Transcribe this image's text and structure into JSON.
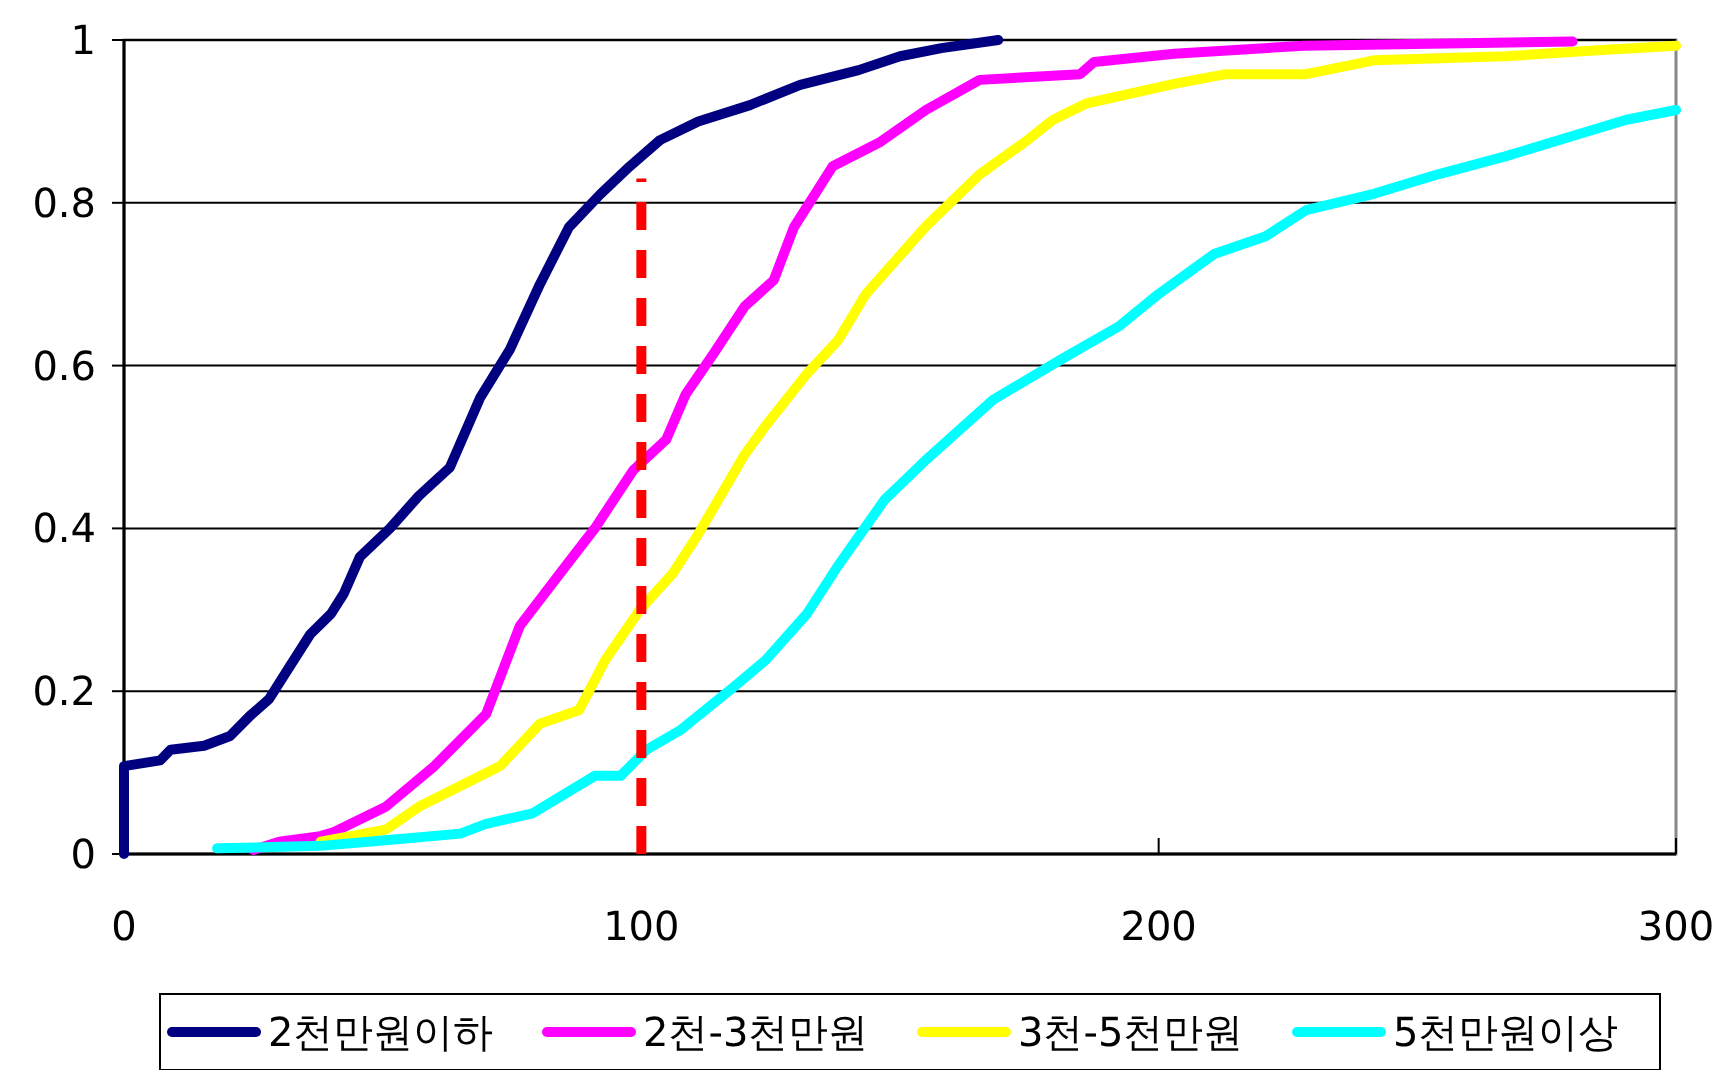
{
  "chart_data": {
    "type": "line",
    "xlim": [
      0,
      300
    ],
    "xticks": [
      0,
      100,
      200,
      300
    ],
    "ylim": [
      0,
      1
    ],
    "yticks": [
      0,
      0.2,
      0.4,
      0.6,
      0.8,
      1
    ],
    "grid": "y",
    "legend": "bottom",
    "line_style": "solid",
    "series": [
      {
        "name": "2천만원이하",
        "color": "#000080",
        "x": [
          0,
          0,
          7,
          9,
          15.5,
          20.5,
          24.4,
          28,
          32,
          36,
          40,
          42.5,
          45.6,
          51.4,
          57,
          63,
          68.8,
          74.6,
          80.4,
          86,
          92,
          97.8,
          103.6,
          111,
          121,
          130.7,
          142,
          150,
          158,
          169
        ],
        "values": [
          0,
          0.108,
          0.115,
          0.128,
          0.133,
          0.145,
          0.17,
          0.19,
          0.23,
          0.27,
          0.295,
          0.32,
          0.365,
          0.4,
          0.44,
          0.475,
          0.56,
          0.62,
          0.7,
          0.77,
          0.81,
          0.845,
          0.877,
          0.9,
          0.92,
          0.945,
          0.963,
          0.98,
          0.99,
          1
        ]
      },
      {
        "name": "2천-3천만원",
        "color": "#ff00ff",
        "x": [
          25,
          30,
          38,
          40.6,
          50.6,
          60,
          70,
          76.5,
          85.4,
          91,
          98.5,
          104.8,
          108.6,
          114,
          120,
          125.6,
          129.5,
          137,
          146,
          155,
          165.4,
          184.8,
          187.5,
          203,
          228,
          280
        ],
        "values": [
          0.005,
          0.015,
          0.022,
          0.027,
          0.058,
          0.108,
          0.172,
          0.28,
          0.354,
          0.4,
          0.472,
          0.509,
          0.565,
          0.615,
          0.673,
          0.705,
          0.77,
          0.845,
          0.874,
          0.914,
          0.951,
          0.958,
          0.973,
          0.983,
          0.993,
          0.998
        ]
      },
      {
        "name": "3천-5천만원",
        "color": "#ffff00",
        "x": [
          38,
          50.6,
          57,
          72.7,
          80.4,
          88,
          93,
          99.7,
          106,
          111,
          120,
          124,
          132,
          138,
          143.4,
          155,
          165.4,
          174,
          179.6,
          186,
          203,
          213,
          228.5,
          241.6,
          267,
          286.5,
          300
        ],
        "values": [
          0.015,
          0.03,
          0.058,
          0.108,
          0.16,
          0.177,
          0.238,
          0.3,
          0.344,
          0.393,
          0.491,
          0.526,
          0.59,
          0.631,
          0.688,
          0.771,
          0.835,
          0.874,
          0.902,
          0.922,
          0.946,
          0.958,
          0.958,
          0.975,
          0.98,
          0.988,
          0.993
        ]
      },
      {
        "name": "5천만원이상",
        "color": "#00ffff",
        "x": [
          18,
          38,
          50.6,
          65,
          70,
          79,
          91,
          96,
          101,
          107.5,
          118,
          124,
          132,
          138,
          147,
          155,
          168,
          181,
          192.5,
          200,
          210.7,
          220.7,
          228.5,
          241.6,
          254,
          267,
          280,
          290.4,
          300
        ],
        "values": [
          0.007,
          0.01,
          0.017,
          0.025,
          0.037,
          0.05,
          0.096,
          0.096,
          0.128,
          0.152,
          0.206,
          0.238,
          0.295,
          0.354,
          0.435,
          0.484,
          0.558,
          0.607,
          0.649,
          0.688,
          0.737,
          0.759,
          0.791,
          0.811,
          0.835,
          0.857,
          0.882,
          0.902,
          0.914
        ]
      },
      {
        "color": "#ff0000",
        "line_style": "dashed",
        "x": [
          100,
          100
        ],
        "values": [
          0,
          0.83
        ]
      }
    ]
  }
}
